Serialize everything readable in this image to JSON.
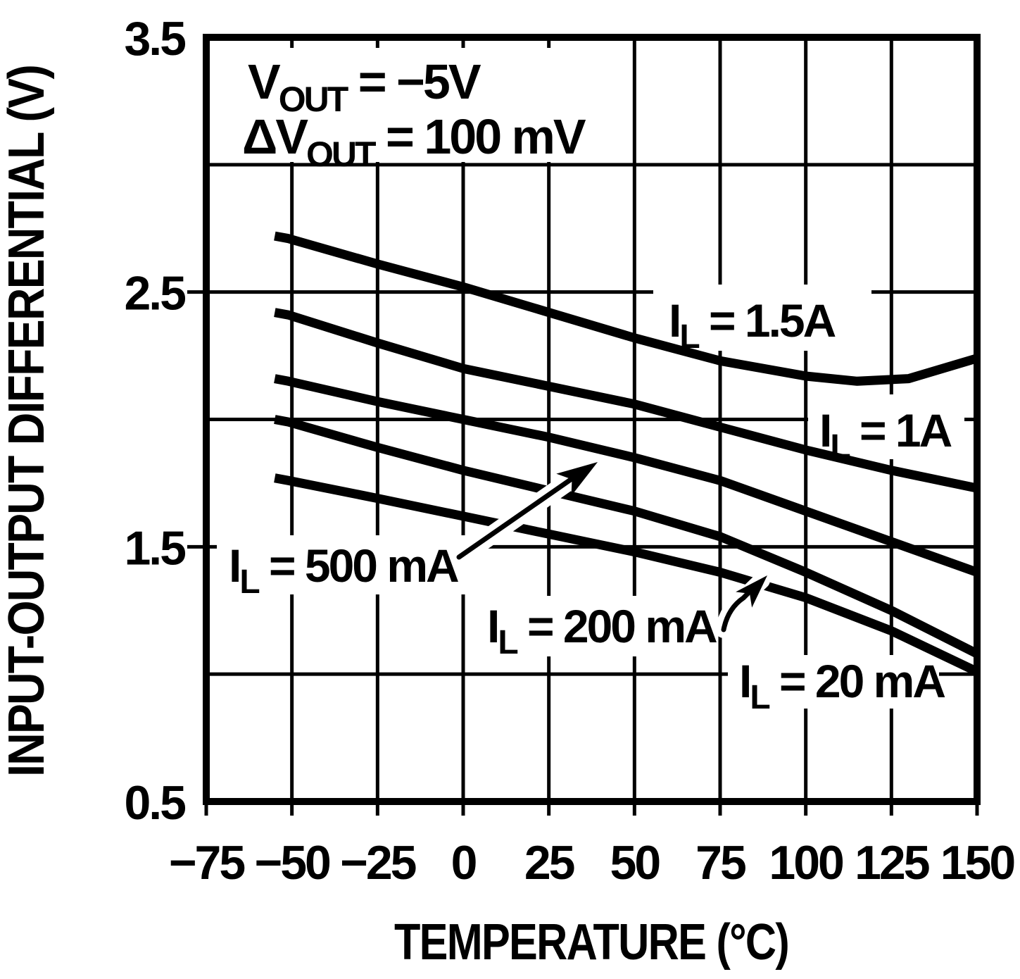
{
  "figure": {
    "kind": "datasheet-graph",
    "background": "#ffffff",
    "ink_color": "#000000"
  },
  "annotation_lines": [
    {
      "main": "V",
      "sub": "OUT",
      "rest": " = −5V"
    },
    {
      "main": "ΔV",
      "sub": "OUT",
      "rest": " = 100 mV"
    }
  ],
  "curve_labels": [
    {
      "main": "I",
      "sub": "L",
      "rest": " = 1.5A"
    },
    {
      "main": "I",
      "sub": "L",
      "rest": " = 1A"
    },
    {
      "main": "I",
      "sub": "L",
      "rest": " = 500 mA"
    },
    {
      "main": "I",
      "sub": "L",
      "rest": " = 200 mA"
    },
    {
      "main": "I",
      "sub": "L",
      "rest": " = 20 mA"
    }
  ],
  "chart_data": {
    "type": "line",
    "title": "",
    "xlabel": "TEMPERATURE (°C)",
    "ylabel": "INPUT-OUTPUT DIFFERENTIAL (V)",
    "xlim": [
      -75,
      150
    ],
    "ylim": [
      0.5,
      3.5
    ],
    "grid": true,
    "x_ticks": [
      -75,
      -50,
      -25,
      0,
      25,
      50,
      75,
      100,
      125,
      150
    ],
    "x_tick_labels": [
      "−75",
      "−50",
      "−25",
      "0",
      "25",
      "50",
      "75",
      "100",
      "125",
      "150"
    ],
    "y_ticks": [
      0.5,
      1.0,
      1.5,
      2.0,
      2.5,
      3.0,
      3.5
    ],
    "y_labeled_ticks": [
      {
        "value": 3.5,
        "label": "3.5"
      },
      {
        "value": 2.5,
        "label": "2.5"
      },
      {
        "value": 1.5,
        "label": "1.5"
      },
      {
        "value": 0.5,
        "label": "0.5"
      }
    ],
    "annotation": [
      "VOUT = −5V",
      "ΔVOUT = 100 mV"
    ],
    "legend_position": "inline-labels",
    "series": [
      {
        "name": "IL = 1.5A",
        "load_current": "1.5 A",
        "x": [
          -55,
          -51,
          -25,
          0,
          25,
          50,
          75,
          100,
          115,
          130,
          150
        ],
        "y": [
          2.72,
          2.71,
          2.61,
          2.52,
          2.42,
          2.32,
          2.23,
          2.17,
          2.15,
          2.16,
          2.24
        ]
      },
      {
        "name": "IL = 1A",
        "load_current": "1 A",
        "x": [
          -55,
          -51,
          -25,
          0,
          25,
          50,
          75,
          100,
          125,
          150
        ],
        "y": [
          2.42,
          2.41,
          2.3,
          2.2,
          2.13,
          2.06,
          1.97,
          1.88,
          1.8,
          1.73
        ]
      },
      {
        "name": "IL = 500 mA",
        "load_current": "500 mA",
        "x": [
          -55,
          -51,
          -25,
          0,
          25,
          50,
          75,
          100,
          125,
          150
        ],
        "y": [
          2.16,
          2.15,
          2.07,
          2.0,
          1.93,
          1.85,
          1.76,
          1.64,
          1.52,
          1.4
        ]
      },
      {
        "name": "IL = 200 mA",
        "load_current": "200 mA",
        "x": [
          -55,
          -51,
          -25,
          0,
          25,
          50,
          75,
          100,
          125,
          150
        ],
        "y": [
          2.0,
          1.99,
          1.89,
          1.8,
          1.72,
          1.64,
          1.54,
          1.4,
          1.25,
          1.08
        ]
      },
      {
        "name": "IL = 20 mA",
        "load_current": "20 mA",
        "x": [
          -55,
          -51,
          -25,
          0,
          25,
          50,
          75,
          100,
          125,
          150
        ],
        "y": [
          1.77,
          1.76,
          1.69,
          1.62,
          1.55,
          1.48,
          1.4,
          1.3,
          1.17,
          1.01
        ]
      }
    ]
  }
}
